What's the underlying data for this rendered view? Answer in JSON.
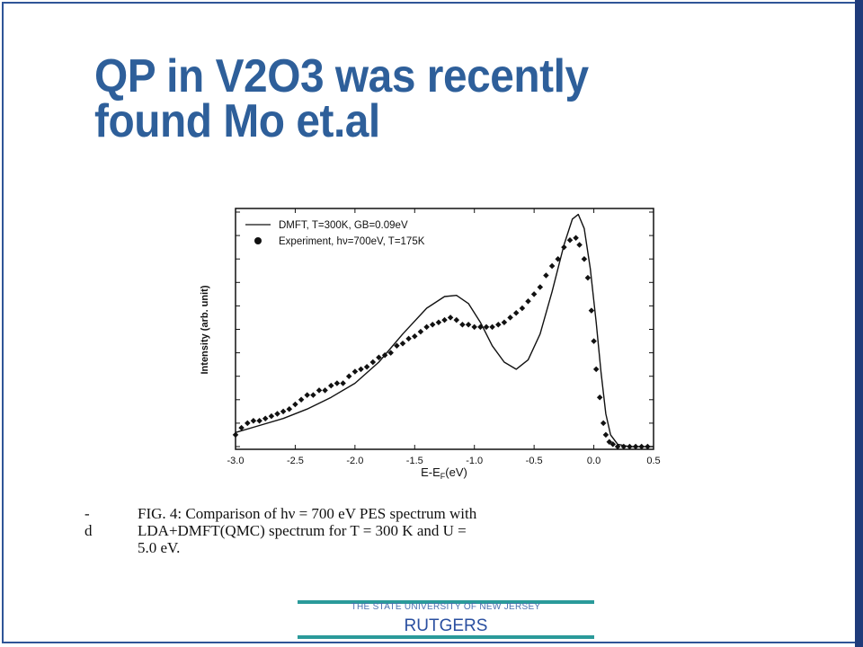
{
  "slide": {
    "title_line1": "QP in V2O3 was recently",
    "title_line2": "found  Mo et.al",
    "title_color": "#2e5f9a",
    "caption_lines": [
      "FIG. 4:  Comparison of hν = 700 eV PES spectrum with",
      "LDA+DMFT(QMC) spectrum for T = 300 K and U =",
      "5.0 eV."
    ],
    "margin_marks": [
      "-",
      "d"
    ],
    "footer": {
      "university": "THE STATE UNIVERSITY OF NEW JERSEY",
      "brand": "RUTGERS",
      "accent": "#2a9a9a"
    }
  },
  "chart_data": {
    "type": "line",
    "xlabel": "E-E",
    "xlabel_sub": "F",
    "xlabel_unit": "(eV)",
    "ylabel": "Intensity (arb. unit)",
    "xlim": [
      -3.0,
      0.5
    ],
    "ylim": [
      0,
      1
    ],
    "x_ticks": [
      "-3.0",
      "-2.5",
      "-2.0",
      "-1.5",
      "-1.0",
      "-0.5",
      "0.0",
      "0.5"
    ],
    "legend_position": "top-left",
    "series": [
      {
        "name": "DMFT, T=300K, GB=0.09eV",
        "style": "line",
        "points": [
          [
            -3.0,
            0.06
          ],
          [
            -2.8,
            0.09
          ],
          [
            -2.6,
            0.12
          ],
          [
            -2.4,
            0.16
          ],
          [
            -2.2,
            0.21
          ],
          [
            -2.0,
            0.27
          ],
          [
            -1.8,
            0.36
          ],
          [
            -1.6,
            0.48
          ],
          [
            -1.4,
            0.59
          ],
          [
            -1.25,
            0.64
          ],
          [
            -1.15,
            0.645
          ],
          [
            -1.05,
            0.61
          ],
          [
            -0.95,
            0.53
          ],
          [
            -0.85,
            0.43
          ],
          [
            -0.75,
            0.36
          ],
          [
            -0.65,
            0.33
          ],
          [
            -0.55,
            0.37
          ],
          [
            -0.45,
            0.48
          ],
          [
            -0.35,
            0.66
          ],
          [
            -0.25,
            0.86
          ],
          [
            -0.18,
            0.97
          ],
          [
            -0.13,
            0.99
          ],
          [
            -0.08,
            0.93
          ],
          [
            -0.03,
            0.76
          ],
          [
            0.02,
            0.53
          ],
          [
            0.06,
            0.32
          ],
          [
            0.1,
            0.14
          ],
          [
            0.14,
            0.05
          ],
          [
            0.2,
            0.01
          ],
          [
            0.3,
            0.0
          ],
          [
            0.5,
            0.0
          ]
        ]
      },
      {
        "name": "Experiment, hν=700eV, T=175K",
        "style": "dots",
        "points": [
          [
            -3.0,
            0.05
          ],
          [
            -2.95,
            0.08
          ],
          [
            -2.9,
            0.1
          ],
          [
            -2.85,
            0.11
          ],
          [
            -2.8,
            0.11
          ],
          [
            -2.75,
            0.12
          ],
          [
            -2.7,
            0.13
          ],
          [
            -2.65,
            0.14
          ],
          [
            -2.6,
            0.15
          ],
          [
            -2.55,
            0.16
          ],
          [
            -2.5,
            0.18
          ],
          [
            -2.45,
            0.2
          ],
          [
            -2.4,
            0.22
          ],
          [
            -2.35,
            0.22
          ],
          [
            -2.3,
            0.24
          ],
          [
            -2.25,
            0.24
          ],
          [
            -2.2,
            0.26
          ],
          [
            -2.15,
            0.27
          ],
          [
            -2.1,
            0.27
          ],
          [
            -2.05,
            0.3
          ],
          [
            -2.0,
            0.32
          ],
          [
            -1.95,
            0.33
          ],
          [
            -1.9,
            0.34
          ],
          [
            -1.85,
            0.36
          ],
          [
            -1.8,
            0.38
          ],
          [
            -1.75,
            0.39
          ],
          [
            -1.7,
            0.4
          ],
          [
            -1.65,
            0.43
          ],
          [
            -1.6,
            0.44
          ],
          [
            -1.55,
            0.46
          ],
          [
            -1.5,
            0.47
          ],
          [
            -1.45,
            0.49
          ],
          [
            -1.4,
            0.51
          ],
          [
            -1.35,
            0.52
          ],
          [
            -1.3,
            0.53
          ],
          [
            -1.25,
            0.54
          ],
          [
            -1.2,
            0.55
          ],
          [
            -1.15,
            0.54
          ],
          [
            -1.1,
            0.52
          ],
          [
            -1.05,
            0.52
          ],
          [
            -1.0,
            0.51
          ],
          [
            -0.95,
            0.51
          ],
          [
            -0.9,
            0.51
          ],
          [
            -0.85,
            0.51
          ],
          [
            -0.8,
            0.52
          ],
          [
            -0.75,
            0.53
          ],
          [
            -0.7,
            0.55
          ],
          [
            -0.65,
            0.57
          ],
          [
            -0.6,
            0.59
          ],
          [
            -0.55,
            0.62
          ],
          [
            -0.5,
            0.65
          ],
          [
            -0.45,
            0.68
          ],
          [
            -0.4,
            0.73
          ],
          [
            -0.35,
            0.77
          ],
          [
            -0.3,
            0.8
          ],
          [
            -0.25,
            0.85
          ],
          [
            -0.2,
            0.88
          ],
          [
            -0.15,
            0.89
          ],
          [
            -0.12,
            0.86
          ],
          [
            -0.08,
            0.8
          ],
          [
            -0.05,
            0.72
          ],
          [
            -0.02,
            0.58
          ],
          [
            0.0,
            0.45
          ],
          [
            0.02,
            0.33
          ],
          [
            0.05,
            0.21
          ],
          [
            0.08,
            0.1
          ],
          [
            0.1,
            0.05
          ],
          [
            0.13,
            0.02
          ],
          [
            0.16,
            0.01
          ],
          [
            0.2,
            0.0
          ],
          [
            0.25,
            0.0
          ],
          [
            0.3,
            0.0
          ],
          [
            0.35,
            0.0
          ],
          [
            0.4,
            0.0
          ],
          [
            0.45,
            0.0
          ]
        ]
      }
    ]
  }
}
